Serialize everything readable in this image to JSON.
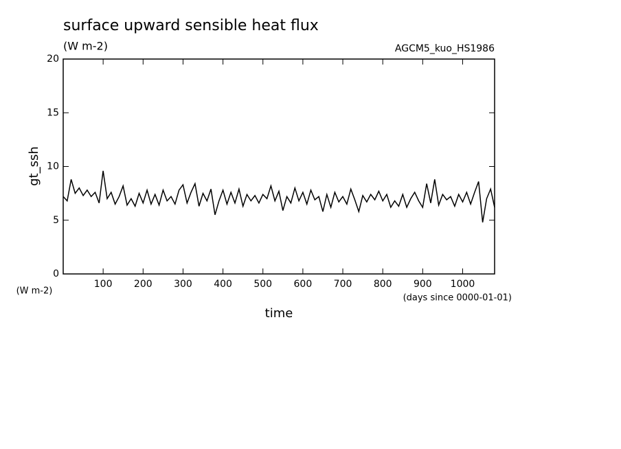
{
  "chart_data": {
    "type": "line",
    "title": "surface upward sensible heat flux",
    "subtitle": "(W m-2)",
    "annotation": "AGCM5_kuo_HS1986",
    "y_label": "gt_ssh",
    "y_units": "(W m-2)",
    "x_units": "(days since 0000-01-01)",
    "x_label": "time",
    "xlim": [
      0,
      1080
    ],
    "ylim": [
      0,
      20
    ],
    "xticks": [
      100,
      200,
      300,
      400,
      500,
      600,
      700,
      800,
      900,
      1000
    ],
    "yticks": [
      0,
      5,
      10,
      15,
      20
    ],
    "color": "#000000",
    "x": [
      0,
      10,
      20,
      30,
      40,
      50,
      60,
      70,
      80,
      90,
      100,
      110,
      120,
      130,
      140,
      150,
      160,
      170,
      180,
      190,
      200,
      210,
      220,
      230,
      240,
      250,
      260,
      270,
      280,
      290,
      300,
      310,
      320,
      330,
      340,
      350,
      360,
      370,
      380,
      390,
      400,
      410,
      420,
      430,
      440,
      450,
      460,
      470,
      480,
      490,
      500,
      510,
      520,
      530,
      540,
      550,
      560,
      570,
      580,
      590,
      600,
      610,
      620,
      630,
      640,
      650,
      660,
      670,
      680,
      690,
      700,
      710,
      720,
      730,
      740,
      750,
      760,
      770,
      780,
      790,
      800,
      810,
      820,
      830,
      840,
      850,
      860,
      870,
      880,
      890,
      900,
      910,
      920,
      930,
      940,
      950,
      960,
      970,
      980,
      990,
      1000,
      1010,
      1020,
      1030,
      1040,
      1050,
      1060,
      1070,
      1080
    ],
    "values": [
      7.2,
      6.8,
      8.8,
      7.5,
      8,
      7.3,
      7.8,
      7.2,
      7.6,
      6.6,
      9.6,
      7,
      7.6,
      6.5,
      7.2,
      8.2,
      6.4,
      7,
      6.3,
      7.5,
      6.6,
      7.8,
      6.5,
      7.4,
      6.4,
      7.8,
      6.8,
      7.2,
      6.5,
      7.8,
      8.3,
      6.6,
      7.6,
      8.4,
      6.3,
      7.5,
      6.8,
      7.9,
      5.5,
      6.8,
      7.8,
      6.5,
      7.6,
      6.6,
      7.9,
      6.3,
      7.4,
      6.8,
      7.3,
      6.6,
      7.4,
      7,
      8.2,
      6.8,
      7.7,
      5.9,
      7.2,
      6.6,
      8,
      6.8,
      7.6,
      6.5,
      7.8,
      6.9,
      7.2,
      5.8,
      7.4,
      6.2,
      7.6,
      6.7,
      7.2,
      6.5,
      7.9,
      6.9,
      5.8,
      7.3,
      6.7,
      7.4,
      6.9,
      7.7,
      6.8,
      7.4,
      6.2,
      6.8,
      6.3,
      7.4,
      6.2,
      7,
      7.6,
      6.8,
      6.2,
      8.4,
      6.6,
      8.8,
      6.4,
      7.4,
      6.9,
      7.2,
      6.3,
      7.4,
      6.7,
      7.6,
      6.5,
      7.6,
      8.6,
      4.8,
      7,
      7.9,
      6.2
    ]
  }
}
